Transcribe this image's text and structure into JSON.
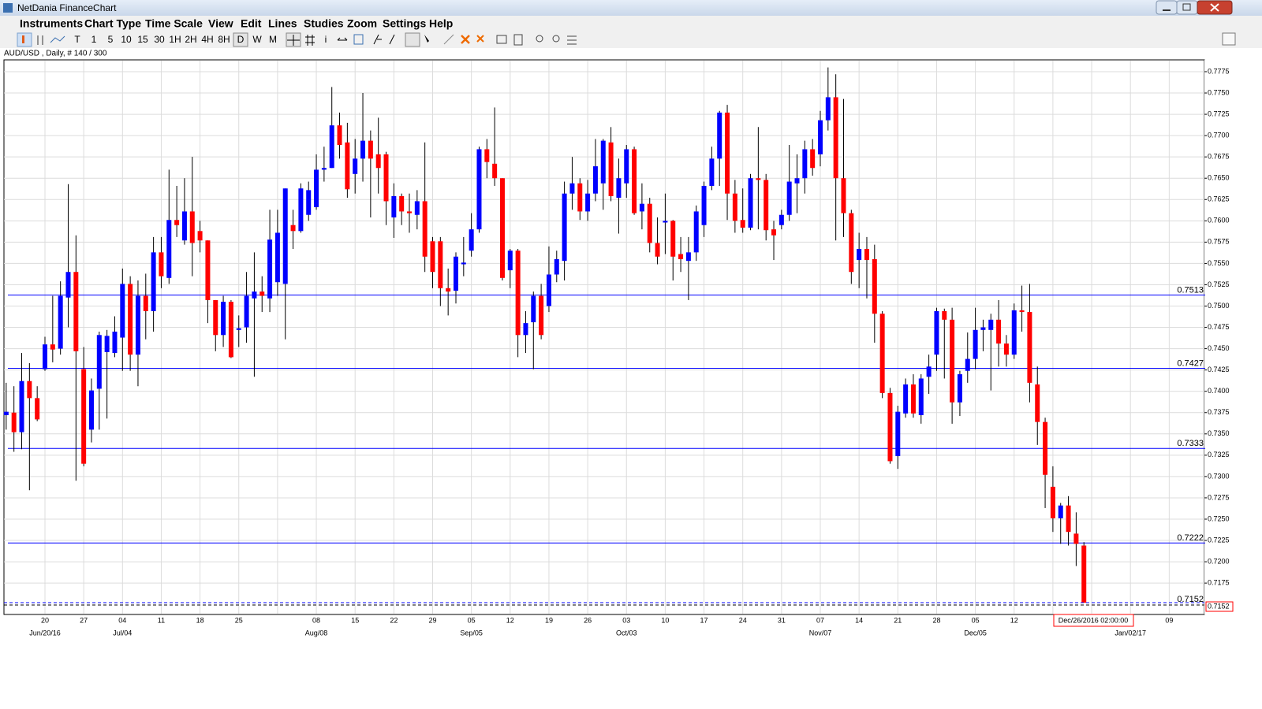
{
  "window": {
    "title": "NetDania FinanceChart"
  },
  "menu": [
    "Instruments",
    "Chart Type",
    "Time Scale",
    "View",
    "Edit",
    "Lines",
    "Studies",
    "Zoom",
    "Settings",
    "Help"
  ],
  "toolbar": [
    "T",
    "1",
    "5",
    "10",
    "15",
    "30",
    "1H",
    "2H",
    "4H",
    "8H",
    "D",
    "W",
    "M",
    "i"
  ],
  "chart_info": "AUD/USD , Daily, # 140 / 300",
  "chart_data": {
    "type": "candlestick",
    "up_color": "#0000ff",
    "down_color": "#ff0000",
    "level_color": "#0000ff",
    "grid": true,
    "ylim": [
      0.714,
      0.7787
    ],
    "yticks": [
      0.7175,
      {
        "value": 0.72,
        "label": "0.7200"
      },
      0.7225,
      {
        "value": 0.725,
        "label": "0.7250"
      },
      0.7275,
      {
        "value": 0.73,
        "label": "0.7300"
      },
      0.7325,
      {
        "value": 0.735,
        "label": "0.7350"
      },
      0.7375,
      {
        "value": 0.74,
        "label": "0.7400"
      },
      0.7425,
      {
        "value": 0.745,
        "label": "0.7450"
      },
      0.7475,
      {
        "value": 0.75,
        "label": "0.7500"
      },
      0.7525,
      {
        "value": 0.755,
        "label": "0.7550"
      },
      0.7575,
      {
        "value": 0.76,
        "label": "0.7600"
      },
      0.7625,
      {
        "value": 0.765,
        "label": "0.7650"
      },
      0.7675,
      {
        "value": 0.77,
        "label": "0.7700"
      },
      0.7725,
      {
        "value": 0.775,
        "label": "0.7750"
      },
      0.7775
    ],
    "levels": [
      0.7513,
      0.7427,
      0.7333,
      0.7222
    ],
    "last_price": 0.7152,
    "crosshair_label": "Dec/26/2016 02:00:00",
    "categories": [
      null,
      null,
      null,
      null,
      null,
      "20",
      null,
      null,
      null,
      null,
      "27",
      null,
      null,
      null,
      null,
      "04",
      null,
      null,
      null,
      null,
      "11",
      null,
      null,
      null,
      null,
      "18",
      null,
      null,
      null,
      null,
      "25",
      null,
      null,
      null,
      null,
      null,
      null,
      null,
      null,
      null,
      "08",
      null,
      null,
      null,
      null,
      "15",
      null,
      null,
      null,
      null,
      "22",
      null,
      null,
      null,
      null,
      "29",
      null,
      null,
      null,
      null,
      "05",
      null,
      null,
      null,
      null,
      "12",
      null,
      null,
      null,
      null,
      "19",
      null,
      null,
      null,
      null,
      "26",
      null,
      null,
      null,
      null,
      "03",
      null,
      null,
      null,
      null,
      "10",
      null,
      null,
      null,
      null,
      "17",
      null,
      null,
      null,
      null,
      "24",
      null,
      null,
      null,
      null,
      "31",
      null,
      null,
      null,
      null,
      "07",
      null,
      null,
      null,
      null,
      "14",
      null,
      null,
      null,
      null,
      "21",
      null,
      null,
      null,
      null,
      "28",
      null,
      null,
      null,
      null,
      "05",
      null,
      null,
      null,
      null,
      "12",
      null,
      null,
      null,
      null,
      null,
      null,
      null,
      null,
      null,
      null,
      null,
      null,
      null,
      null,
      null,
      null,
      null,
      null,
      null,
      "09",
      null,
      null,
      null,
      null
    ],
    "category_groups": [
      null,
      null,
      null,
      null,
      null,
      "Jun/20/16",
      null,
      null,
      null,
      null,
      null,
      null,
      null,
      null,
      null,
      "Jul/04",
      null,
      null,
      null,
      null,
      null,
      null,
      null,
      null,
      null,
      null,
      null,
      null,
      null,
      null,
      null,
      null,
      null,
      null,
      null,
      null,
      null,
      null,
      null,
      null,
      "Aug/08",
      null,
      null,
      null,
      null,
      null,
      null,
      null,
      null,
      null,
      null,
      null,
      null,
      null,
      null,
      null,
      null,
      null,
      null,
      null,
      "Sep/05",
      null,
      null,
      null,
      null,
      null,
      null,
      null,
      null,
      null,
      null,
      null,
      null,
      null,
      null,
      null,
      null,
      null,
      null,
      null,
      "Oct/03",
      null,
      null,
      null,
      null,
      null,
      null,
      null,
      null,
      null,
      null,
      null,
      null,
      null,
      null,
      null,
      null,
      null,
      null,
      null,
      null,
      null,
      null,
      null,
      null,
      "Nov/07",
      null,
      null,
      null,
      null,
      null,
      null,
      null,
      null,
      null,
      null,
      null,
      null,
      null,
      null,
      null,
      null,
      null,
      null,
      null,
      "Dec/05",
      null,
      null,
      null,
      null,
      null,
      null,
      null,
      null,
      null,
      null,
      null,
      null,
      null,
      null,
      null,
      null,
      null,
      null,
      null,
      "Jan/02/17",
      null,
      null,
      null,
      null,
      null,
      null,
      null,
      null,
      null
    ],
    "open": [
      0.7372,
      0.7375,
      0.7352,
      0.7412,
      0.7392,
      0.7426,
      0.7455,
      0.745,
      0.751,
      0.754,
      0.7426,
      0.7355,
      0.7403,
      0.7446,
      0.7445,
      0.7463,
      0.7526,
      0.7443,
      0.7512,
      0.7494,
      0.7563,
      0.7533,
      0.7601,
      0.7577,
      0.7611,
      0.7588,
      0.7577,
      0.7507,
      0.7466,
      0.7505,
      0.7472,
      0.7475,
      0.7509,
      0.7517,
      0.7509,
      0.7528,
      0.7526,
      0.7595,
      0.7588,
      0.7607,
      0.7616,
      0.766,
      0.7662,
      0.7712,
      0.7692,
      0.7655,
      0.7673,
      0.7694,
      0.7678,
      0.7678,
      0.7604,
      0.7629,
      0.7611,
      0.7607,
      0.7623,
      0.7576,
      0.7576,
      0.7521,
      0.7518,
      0.7549,
      0.7565,
      0.759,
      0.7684,
      0.7667,
      0.765,
      0.7542,
      0.7565,
      0.7466,
      0.7481,
      0.7512,
      0.75,
      0.7537,
      0.7553,
      0.7632,
      0.7644,
      0.7611,
      0.7632,
      0.7644,
      0.7692,
      0.7627,
      0.7644,
      0.7684,
      0.7611,
      0.762,
      0.7574,
      0.7598,
      0.76,
      0.7561,
      0.7553,
      0.7563,
      0.7595,
      0.7641,
      0.7673,
      0.7727,
      0.7632,
      0.7601,
      0.7592,
      0.765,
      0.7648,
      0.759,
      0.7595,
      0.7607,
      0.7644,
      0.765,
      0.7684,
      0.7678,
      0.7718,
      0.7745,
      0.765,
      0.7609,
      0.7554,
      0.7567,
      0.7555,
      0.7491,
      0.7398,
      0.7324,
      0.7374,
      0.7408,
      0.7372,
      0.7417,
      0.7443,
      0.7494,
      0.7484,
      0.7387,
      0.7424,
      0.7438,
      0.7472,
      0.7472,
      0.7484,
      0.7456,
      0.7443,
      0.7495,
      0.7493,
      0.7408,
      0.7364,
      0.7288,
      0.7251,
      0.7266,
      0.7233,
      0.7219,
      null,
      null,
      null,
      null,
      null,
      null,
      null,
      null,
      null,
      null,
      null,
      null,
      null,
      null,
      null
    ],
    "high": [
      0.741,
      0.7406,
      0.7445,
      0.7433,
      0.7406,
      0.7464,
      0.7512,
      0.7529,
      0.7643,
      0.7583,
      0.7452,
      0.7415,
      0.747,
      0.7472,
      0.7488,
      0.7544,
      0.7535,
      0.753,
      0.7538,
      0.7581,
      0.7581,
      0.766,
      0.7641,
      0.765,
      0.7675,
      0.76,
      0.7577,
      0.7507,
      0.7512,
      0.7507,
      0.7489,
      0.754,
      0.7563,
      0.7535,
      0.7613,
      0.7613,
      0.7638,
      0.7613,
      0.7644,
      0.7646,
      0.7678,
      0.7687,
      0.7757,
      0.7727,
      0.7715,
      0.7696,
      0.775,
      0.7706,
      0.7721,
      0.7681,
      0.7644,
      0.7632,
      0.7632,
      0.7636,
      0.7692,
      0.7581,
      0.7581,
      0.7544,
      0.7563,
      0.7581,
      0.7609,
      0.7687,
      0.7696,
      0.7733,
      0.765,
      0.7567,
      0.7567,
      0.7494,
      0.7517,
      0.7526,
      0.757,
      0.7565,
      0.7646,
      0.7675,
      0.765,
      0.7648,
      0.7696,
      0.7696,
      0.771,
      0.7673,
      0.7689,
      0.7687,
      0.7644,
      0.7627,
      0.7604,
      0.7632,
      0.7601,
      0.7581,
      0.7581,
      0.7618,
      0.7646,
      0.7687,
      0.7729,
      0.7736,
      0.7648,
      0.7638,
      0.7655,
      0.771,
      0.7655,
      0.76,
      0.7613,
      0.7689,
      0.7678,
      0.7694,
      0.7696,
      0.7729,
      0.778,
      0.7772,
      0.7743,
      0.7613,
      0.7586,
      0.7581,
      0.7572,
      0.7494,
      0.7404,
      0.7383,
      0.7415,
      0.742,
      0.742,
      0.7443,
      0.7498,
      0.7497,
      0.7498,
      0.7424,
      0.7469,
      0.7498,
      0.7484,
      0.7491,
      0.7507,
      0.7466,
      0.7503,
      0.7524,
      0.7526,
      0.7429,
      0.7369,
      0.7312,
      0.7269,
      0.7277,
      0.7258,
      0.7223,
      null,
      null,
      null,
      null,
      null,
      null,
      null,
      null,
      null,
      null,
      null,
      null,
      null,
      null,
      null
    ],
    "low": [
      0.7355,
      0.7329,
      0.7332,
      0.7284,
      0.7365,
      0.7424,
      0.7434,
      0.7443,
      0.7475,
      0.7295,
      0.7312,
      0.734,
      0.7355,
      0.7368,
      0.744,
      0.7424,
      0.7424,
      0.7406,
      0.7461,
      0.747,
      0.7521,
      0.7526,
      0.7581,
      0.7572,
      0.7535,
      0.7563,
      0.748,
      0.7447,
      0.7452,
      0.7439,
      0.7452,
      0.7457,
      0.7417,
      0.7493,
      0.7493,
      0.7512,
      0.7461,
      0.7567,
      0.7586,
      0.76,
      0.7613,
      0.7646,
      0.7662,
      0.7673,
      0.7627,
      0.7632,
      0.7646,
      0.7604,
      0.7632,
      0.7595,
      0.758,
      0.7595,
      0.7586,
      0.759,
      0.754,
      0.7521,
      0.75,
      0.7489,
      0.7503,
      0.7535,
      0.7558,
      0.7586,
      0.765,
      0.7641,
      0.753,
      0.7521,
      0.744,
      0.7445,
      0.7426,
      0.7461,
      0.7493,
      0.7528,
      0.753,
      0.7613,
      0.7601,
      0.76,
      0.7623,
      0.7613,
      0.7623,
      0.7585,
      0.7627,
      0.7607,
      0.759,
      0.7563,
      0.7549,
      0.7561,
      0.753,
      0.754,
      0.7507,
      0.7553,
      0.7581,
      0.7636,
      0.7641,
      0.7601,
      0.7586,
      0.7586,
      0.7589,
      0.759,
      0.7577,
      0.7554,
      0.759,
      0.76,
      0.7609,
      0.7632,
      0.7653,
      0.7664,
      0.7706,
      0.7577,
      0.7581,
      0.7526,
      0.7521,
      0.7509,
      0.7457,
      0.7392,
      0.7315,
      0.7309,
      0.7369,
      0.7369,
      0.7362,
      0.7397,
      0.7424,
      0.7415,
      0.7362,
      0.7371,
      0.741,
      0.7426,
      0.7447,
      0.7401,
      0.7429,
      0.7429,
      0.7438,
      0.747,
      0.7387,
      0.7337,
      0.7263,
      0.7235,
      0.7221,
      0.7219,
      0.7195,
      0.7152,
      null,
      null,
      null,
      null,
      null,
      null,
      null,
      null,
      null,
      null,
      null,
      null,
      null,
      null,
      null
    ],
    "close": [
      0.7376,
      0.7352,
      0.7412,
      0.7392,
      0.7367,
      0.7455,
      0.7449,
      0.7512,
      0.754,
      0.7447,
      0.7315,
      0.7401,
      0.7466,
      0.7465,
      0.747,
      0.7526,
      0.7443,
      0.7512,
      0.7494,
      0.7563,
      0.7535,
      0.7601,
      0.7595,
      0.7611,
      0.7574,
      0.7577,
      0.7507,
      0.7466,
      0.7505,
      0.744,
      0.7474,
      0.7512,
      0.7517,
      0.7512,
      0.7578,
      0.7586,
      0.7638,
      0.7588,
      0.7638,
      0.7636,
      0.766,
      0.7662,
      0.7712,
      0.7689,
      0.7637,
      0.7673,
      0.7694,
      0.7673,
      0.7662,
      0.7623,
      0.7629,
      0.7611,
      0.7609,
      0.7623,
      0.7558,
      0.754,
      0.7521,
      0.7517,
      0.7558,
      0.7551,
      0.759,
      0.7684,
      0.7669,
      0.765,
      0.7533,
      0.7565,
      0.7466,
      0.748,
      0.7512,
      0.7466,
      0.7537,
      0.7555,
      0.7632,
      0.7644,
      0.7611,
      0.7632,
      0.7664,
      0.7694,
      0.7629,
      0.765,
      0.7684,
      0.7609,
      0.762,
      0.7574,
      0.7558,
      0.76,
      0.7558,
      0.7555,
      0.7563,
      0.7611,
      0.7641,
      0.7673,
      0.7727,
      0.7632,
      0.76,
      0.7592,
      0.765,
      0.7648,
      0.7589,
      0.7583,
      0.7607,
      0.7646,
      0.765,
      0.7684,
      0.7662,
      0.7718,
      0.7745,
      0.765,
      0.7609,
      0.754,
      0.7567,
      0.7554,
      0.7491,
      0.7398,
      0.7318,
      0.7376,
      0.7408,
      0.7374,
      0.7415,
      0.7429,
      0.7494,
      0.7484,
      0.7387,
      0.742,
      0.7438,
      0.7472,
      0.7475,
      0.7484,
      0.7456,
      0.7443,
      0.7495,
      0.7493,
      0.741,
      0.7364,
      0.7302,
      0.7251,
      0.7266,
      0.7235,
      0.7221,
      0.7152,
      null,
      null,
      null,
      null,
      null,
      null,
      null,
      null,
      null,
      null,
      null,
      null,
      null,
      null,
      null
    ]
  }
}
